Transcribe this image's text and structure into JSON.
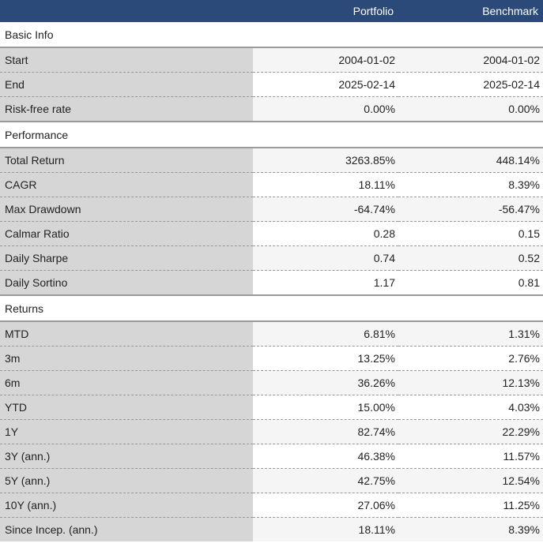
{
  "header": {
    "portfolio_label": "Portfolio",
    "benchmark_label": "Benchmark"
  },
  "sections": [
    {
      "title": "Basic Info",
      "rows": [
        {
          "label": "Start",
          "portfolio": "2004-01-02",
          "benchmark": "2004-01-02"
        },
        {
          "label": "End",
          "portfolio": "2025-02-14",
          "benchmark": "2025-02-14"
        },
        {
          "label": "Risk-free rate",
          "portfolio": "0.00%",
          "benchmark": "0.00%"
        }
      ]
    },
    {
      "title": "Performance",
      "rows": [
        {
          "label": "Total Return",
          "portfolio": "3263.85%",
          "benchmark": "448.14%"
        },
        {
          "label": "CAGR",
          "portfolio": "18.11%",
          "benchmark": "8.39%"
        },
        {
          "label": "Max Drawdown",
          "portfolio": "-64.74%",
          "benchmark": "-56.47%"
        },
        {
          "label": "Calmar Ratio",
          "portfolio": "0.28",
          "benchmark": "0.15"
        },
        {
          "label": "Daily Sharpe",
          "portfolio": "0.74",
          "benchmark": "0.52"
        },
        {
          "label": "Daily Sortino",
          "portfolio": "1.17",
          "benchmark": "0.81"
        }
      ]
    },
    {
      "title": "Returns",
      "rows": [
        {
          "label": "MTD",
          "portfolio": "6.81%",
          "benchmark": "1.31%"
        },
        {
          "label": "3m",
          "portfolio": "13.25%",
          "benchmark": "2.76%"
        },
        {
          "label": "6m",
          "portfolio": "36.26%",
          "benchmark": "12.13%"
        },
        {
          "label": "YTD",
          "portfolio": "15.00%",
          "benchmark": "4.03%"
        },
        {
          "label": "1Y",
          "portfolio": "82.74%",
          "benchmark": "22.29%"
        },
        {
          "label": "3Y (ann.)",
          "portfolio": "46.38%",
          "benchmark": "11.57%"
        },
        {
          "label": "5Y (ann.)",
          "portfolio": "42.75%",
          "benchmark": "12.54%"
        },
        {
          "label": "10Y (ann.)",
          "portfolio": "27.06%",
          "benchmark": "11.25%"
        },
        {
          "label": "Since Incep. (ann.)",
          "portfolio": "18.11%",
          "benchmark": "8.39%"
        }
      ]
    }
  ]
}
